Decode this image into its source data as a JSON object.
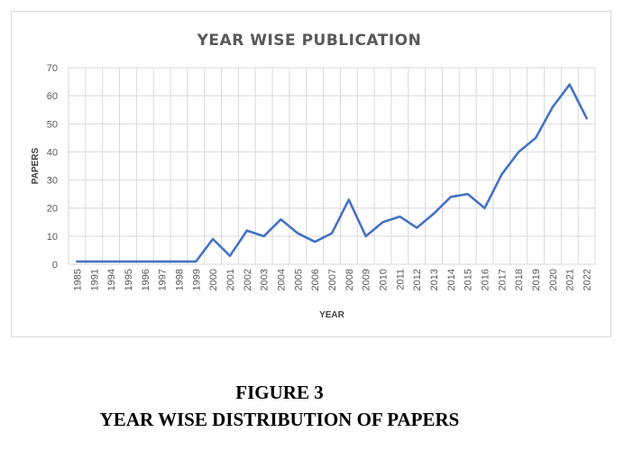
{
  "chart_data": {
    "type": "line",
    "title": "YEAR WISE PUBLICATION",
    "xlabel": "YEAR",
    "ylabel": "PAPERS",
    "ylim": [
      0,
      70
    ],
    "yticks": [
      0,
      10,
      20,
      30,
      40,
      50,
      60,
      70
    ],
    "grid": true,
    "legend": "none",
    "line_color": "#4472c4",
    "categories": [
      "1985",
      "1991",
      "1994",
      "1995",
      "1996",
      "1997",
      "1998",
      "1999",
      "2000",
      "2001",
      "2002",
      "2003",
      "2004",
      "2005",
      "2006",
      "2007",
      "2008",
      "2009",
      "2010",
      "2011",
      "2012",
      "2013",
      "2014",
      "2015",
      "2016",
      "2017",
      "2018",
      "2019",
      "2020",
      "2021",
      "2022"
    ],
    "values": [
      1,
      1,
      1,
      1,
      1,
      1,
      1,
      1,
      9,
      3,
      12,
      10,
      16,
      11,
      8,
      11,
      23,
      10,
      15,
      17,
      13,
      18,
      24,
      25,
      20,
      32,
      40,
      45,
      56,
      64,
      52
    ]
  },
  "caption": {
    "line1": "FIGURE 3",
    "line2": "YEAR WISE DISTRIBUTION OF PAPERS"
  }
}
